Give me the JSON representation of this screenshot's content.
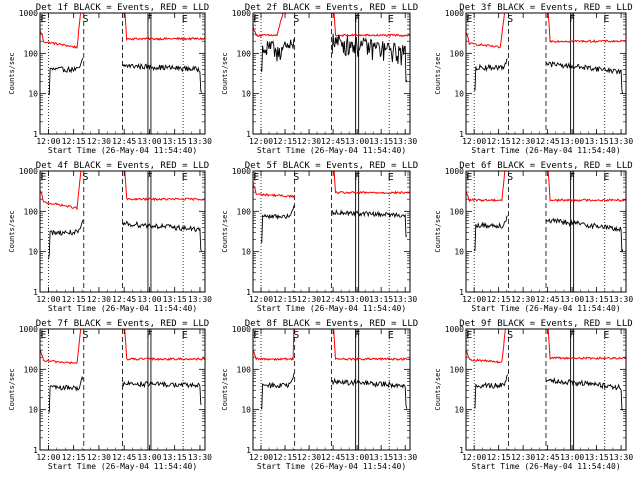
{
  "chart_data": {
    "type": "line",
    "ylabel": "Counts/sec",
    "xlabel": "Start Time (26-May-04 11:54:40)",
    "yscale": "log",
    "ylim": [
      1,
      1000
    ],
    "xlim": [
      "11:55",
      "13:33"
    ],
    "y_ticks": [
      "1",
      "10",
      "100",
      "1000"
    ],
    "x_ticks": [
      "12:00",
      "12:15",
      "12:30",
      "12:45",
      "13:00",
      "13:15",
      "13:30"
    ],
    "colors": {
      "events": "#000000",
      "lld": "#ff0000",
      "axes": "#000000"
    },
    "markers": {
      "solid_vertical": [
        "13:00"
      ],
      "dashed_vertical": [
        "12:21",
        "12:44"
      ],
      "dotted_vertical": [
        "12:00",
        "13:20"
      ],
      "letters": [
        {
          "text": "E",
          "x": "11:57"
        },
        {
          "text": "S",
          "x": "12:22"
        },
        {
          "text": "F",
          "x": "13:00"
        },
        {
          "text": "E",
          "x": "13:21"
        }
      ]
    },
    "panels": [
      {
        "title": "Det 1f BLACK = Events, RED = LLD",
        "lld_base": 230,
        "lld_min": 140,
        "lld_rise": "12:17",
        "ev_pre": 40,
        "ev_post": 50,
        "ev_post_end": 40,
        "noise": 0.15
      },
      {
        "title": "Det 2f BLACK = Events, RED = LLD",
        "lld_base": 280,
        "lld_min": 280,
        "lld_rise": "12:10",
        "ev_pre": 130,
        "ev_post": 200,
        "ev_post_end": 100,
        "noise": 0.55
      },
      {
        "title": "Det 3f BLACK = Events, RED = LLD",
        "lld_base": 200,
        "lld_min": 140,
        "lld_rise": "12:16",
        "ev_pre": 45,
        "ev_post": 55,
        "ev_post_end": 35,
        "noise": 0.15
      },
      {
        "title": "Det 4f BLACK = Events, RED = LLD",
        "lld_base": 200,
        "lld_min": 120,
        "lld_rise": "12:17",
        "ev_pre": 30,
        "ev_post": 50,
        "ev_post_end": 35,
        "noise": 0.15
      },
      {
        "title": "Det 5f BLACK = Events, RED = LLD",
        "lld_base": 290,
        "lld_min": 230,
        "lld_rise": "12:23",
        "ev_pre": 75,
        "ev_post": 95,
        "ev_post_end": 80,
        "noise": 0.12
      },
      {
        "title": "Det 6f BLACK = Events, RED = LLD",
        "lld_base": 190,
        "lld_min": 190,
        "lld_rise": "12:17",
        "ev_pre": 45,
        "ev_post": 60,
        "ev_post_end": 35,
        "noise": 0.15
      },
      {
        "title": "Det 7f BLACK = Events, RED = LLD",
        "lld_base": 180,
        "lld_min": 140,
        "lld_rise": "12:17",
        "ev_pre": 35,
        "ev_post": 45,
        "ev_post_end": 40,
        "noise": 0.15
      },
      {
        "title": "Det 8f BLACK = Events, RED = LLD",
        "lld_base": 180,
        "lld_min": 180,
        "lld_rise": "12:20",
        "ev_pre": 40,
        "ev_post": 50,
        "ev_post_end": 40,
        "noise": 0.15
      },
      {
        "title": "Det 9f BLACK = Events, RED = LLD",
        "lld_base": 190,
        "lld_min": 150,
        "lld_rise": "12:17",
        "ev_pre": 40,
        "ev_post": 55,
        "ev_post_end": 35,
        "noise": 0.15
      }
    ]
  }
}
